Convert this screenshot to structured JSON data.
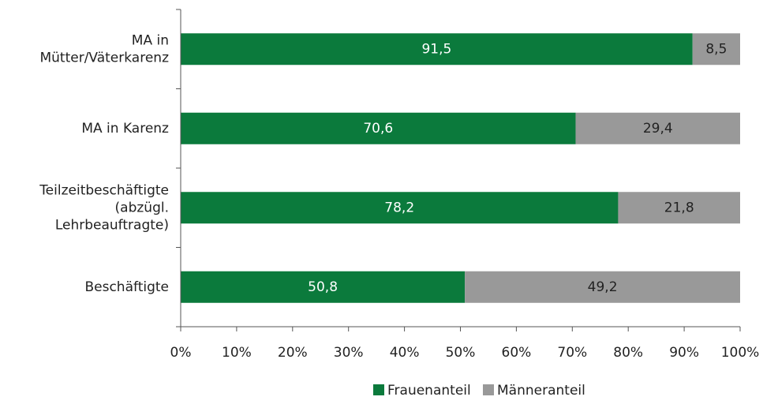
{
  "chart_data": {
    "type": "stacked-barh",
    "categories": [
      "MA in\nMütter/Väterkarenz",
      "MA in Karenz",
      "Teilzeitbeschäftigte\n(abzügl.\nLehrbeauftragte)",
      "Beschäftigte"
    ],
    "series": [
      {
        "name": "Frauenanteil",
        "color": "#0b7a3c",
        "values": [
          91.5,
          70.6,
          78.2,
          50.8
        ],
        "value_labels": [
          "91,5",
          "70,6",
          "78,2",
          "50,8"
        ]
      },
      {
        "name": "Männeranteil",
        "color": "#999999",
        "values": [
          8.5,
          29.4,
          21.8,
          49.2
        ],
        "value_labels": [
          "8,5",
          "29,4",
          "21,8",
          "49,2"
        ]
      }
    ],
    "xlim": [
      0,
      100
    ],
    "xticks": [
      {
        "value": 0,
        "label": "0%"
      },
      {
        "value": 10,
        "label": "10%"
      },
      {
        "value": 20,
        "label": "20%"
      },
      {
        "value": 30,
        "label": "30%"
      },
      {
        "value": 40,
        "label": "40%"
      },
      {
        "value": 50,
        "label": "50%"
      },
      {
        "value": 60,
        "label": "60%"
      },
      {
        "value": 70,
        "label": "70%"
      },
      {
        "value": 80,
        "label": "80%"
      },
      {
        "value": 90,
        "label": "90%"
      },
      {
        "value": 100,
        "label": "100%"
      }
    ],
    "legend": "bottom"
  }
}
